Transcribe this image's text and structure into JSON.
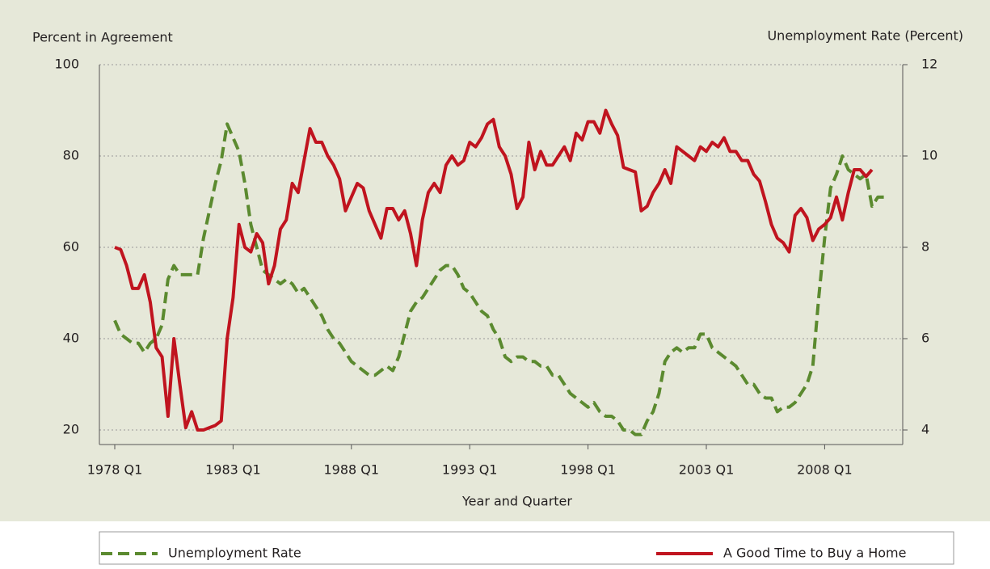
{
  "chart_data": {
    "type": "line",
    "y_label": "Percent in Agreement",
    "y2_label": "Unemployment Rate (Percent)",
    "x_label": "Year and Quarter",
    "categories": [
      "1978 Q1",
      null,
      null,
      null,
      null,
      null,
      null,
      null,
      null,
      null,
      null,
      null,
      null,
      null,
      null,
      null,
      null,
      null,
      null,
      null,
      "1983 Q1",
      null,
      null,
      null,
      null,
      null,
      null,
      null,
      null,
      null,
      null,
      null,
      null,
      null,
      null,
      null,
      null,
      null,
      null,
      null,
      "1988 Q1",
      null,
      null,
      null,
      null,
      null,
      null,
      null,
      null,
      null,
      null,
      null,
      null,
      null,
      null,
      null,
      null,
      null,
      null,
      null,
      "1993 Q1",
      null,
      null,
      null,
      null,
      null,
      null,
      null,
      null,
      null,
      null,
      null,
      null,
      null,
      null,
      null,
      null,
      null,
      null,
      null,
      "1998 Q1",
      null,
      null,
      null,
      null,
      null,
      null,
      null,
      null,
      null,
      null,
      null,
      null,
      null,
      null,
      null,
      null,
      null,
      null,
      null,
      "2003 Q1",
      null,
      null,
      null,
      null,
      null,
      null,
      null,
      null,
      null,
      null,
      null,
      null,
      null,
      null,
      null,
      null,
      null,
      null,
      null,
      "2008 Q1",
      null,
      null,
      null,
      null,
      null,
      null,
      null,
      null,
      null,
      null
    ],
    "series": [
      {
        "name": "Unemployment Rate",
        "color": "#5b8a2f",
        "axis": "y2",
        "dashed": true,
        "values": [
          6.4,
          6.1,
          6.0,
          5.9,
          5.9,
          5.7,
          5.9,
          6.0,
          6.3,
          7.3,
          7.6,
          7.4,
          7.4,
          7.4,
          7.4,
          8.2,
          8.8,
          9.4,
          9.9,
          10.7,
          10.4,
          10.1,
          9.4,
          8.5,
          8.0,
          7.5,
          7.4,
          7.3,
          7.2,
          7.3,
          7.2,
          7.0,
          7.1,
          6.9,
          6.7,
          6.5,
          6.2,
          6.0,
          5.9,
          5.7,
          5.5,
          5.4,
          5.3,
          5.2,
          5.2,
          5.3,
          5.4,
          5.3,
          5.6,
          6.1,
          6.6,
          6.8,
          6.9,
          7.1,
          7.3,
          7.5,
          7.6,
          7.6,
          7.4,
          7.1,
          7.0,
          6.8,
          6.6,
          6.5,
          6.2,
          6.0,
          5.6,
          5.5,
          5.6,
          5.6,
          5.5,
          5.5,
          5.4,
          5.4,
          5.2,
          5.2,
          5.0,
          4.8,
          4.7,
          4.6,
          4.5,
          4.6,
          4.4,
          4.3,
          4.3,
          4.2,
          4.0,
          4.0,
          3.9,
          3.9,
          4.2,
          4.4,
          4.8,
          5.5,
          5.7,
          5.8,
          5.7,
          5.8,
          5.8,
          6.1,
          6.1,
          5.8,
          5.7,
          5.6,
          5.5,
          5.4,
          5.2,
          5.0,
          5.0,
          4.8,
          4.7,
          4.7,
          4.4,
          4.5,
          4.5,
          4.6,
          4.8,
          5.0,
          5.4,
          6.9,
          8.2,
          9.3,
          9.6,
          10.0,
          9.7,
          9.6,
          9.5,
          9.6,
          8.9,
          9.1,
          9.1
        ]
      },
      {
        "name": "A Good Time to Buy a Home",
        "color": "#c0141f",
        "axis": "y",
        "dashed": false,
        "values": [
          60,
          59.5,
          56,
          51,
          51,
          54,
          48,
          38,
          36,
          23,
          40,
          30,
          20.5,
          24,
          20,
          20,
          20.5,
          21,
          22,
          40,
          49,
          65,
          60,
          59,
          63,
          61,
          52,
          56,
          64,
          66,
          74,
          72,
          79,
          86,
          83,
          83,
          80,
          78,
          75,
          68,
          71,
          74,
          73,
          68,
          65,
          62,
          68.5,
          68.5,
          66,
          68,
          63,
          56,
          66,
          72,
          74,
          72,
          78,
          80,
          78,
          79,
          83,
          82,
          84,
          87,
          88,
          82,
          80,
          76,
          68.5,
          71,
          83,
          77,
          81,
          78,
          78,
          80,
          82,
          79,
          85,
          83.5,
          87.5,
          87.5,
          85,
          90,
          87,
          84.5,
          77.5,
          77,
          76.5,
          68,
          69,
          72,
          74,
          77,
          74,
          82,
          81,
          80,
          79,
          82,
          81,
          83,
          82,
          84,
          81,
          81,
          79,
          79,
          76,
          74.5,
          70,
          65,
          62,
          61,
          59,
          67,
          68.5,
          66.5,
          61.5,
          64,
          65,
          66.5,
          71,
          66,
          72,
          77,
          77,
          75.5,
          77,
          null,
          null
        ]
      }
    ],
    "ylim": [
      20,
      100
    ],
    "yticks": [
      20,
      40,
      60,
      80,
      100
    ],
    "y2lim": [
      4,
      12
    ],
    "y2ticks": [
      4,
      6,
      8,
      10,
      12
    ],
    "grid": true
  }
}
